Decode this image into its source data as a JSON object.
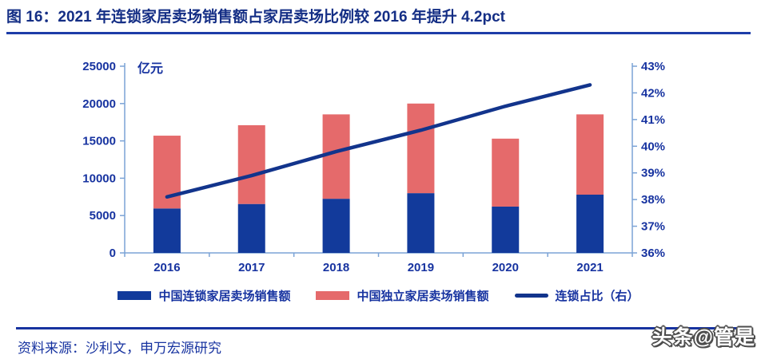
{
  "header": {
    "title": "图 16：2021 年连锁家居卖场销售额占家居卖场比例较 2016 年提升 4.2pct"
  },
  "footer": {
    "source_label": "资料来源：沙利文，申万宏源研究",
    "watermark": "头条@管是"
  },
  "chart_data": {
    "type": "combo-stacked-bar-line",
    "unit_label": "亿元",
    "categories": [
      "2016",
      "2017",
      "2018",
      "2019",
      "2020",
      "2021"
    ],
    "series": [
      {
        "name": "中国连锁家居卖场销售额",
        "kind": "bar",
        "stack": true,
        "color": "#123a9b",
        "values": [
          5950,
          6550,
          7250,
          8000,
          6200,
          7800
        ]
      },
      {
        "name": "中国独立家居卖场销售额",
        "kind": "bar",
        "stack": true,
        "color": "#e56a6b",
        "values": [
          9750,
          10550,
          11300,
          12000,
          9100,
          10750
        ]
      },
      {
        "name": "连锁占比（右）",
        "kind": "line",
        "axis": "right",
        "color": "#12348c",
        "values": [
          38.1,
          38.9,
          39.8,
          40.6,
          41.5,
          42.3
        ]
      }
    ],
    "left_axis": {
      "min": 0,
      "max": 25000,
      "step": 5000,
      "tick_labels": [
        "0",
        "5000",
        "10000",
        "15000",
        "20000",
        "25000"
      ]
    },
    "right_axis": {
      "min": 36,
      "max": 43,
      "step": 1,
      "tick_labels": [
        "36%",
        "37%",
        "38%",
        "39%",
        "40%",
        "41%",
        "42%",
        "43%"
      ]
    },
    "legend_position": "bottom",
    "grid": false,
    "colors": {
      "axis_line": "#7ba3d6",
      "axis_text": "#1733a0",
      "title_text": "#142e85",
      "title_underline": "#1d3da8"
    }
  }
}
